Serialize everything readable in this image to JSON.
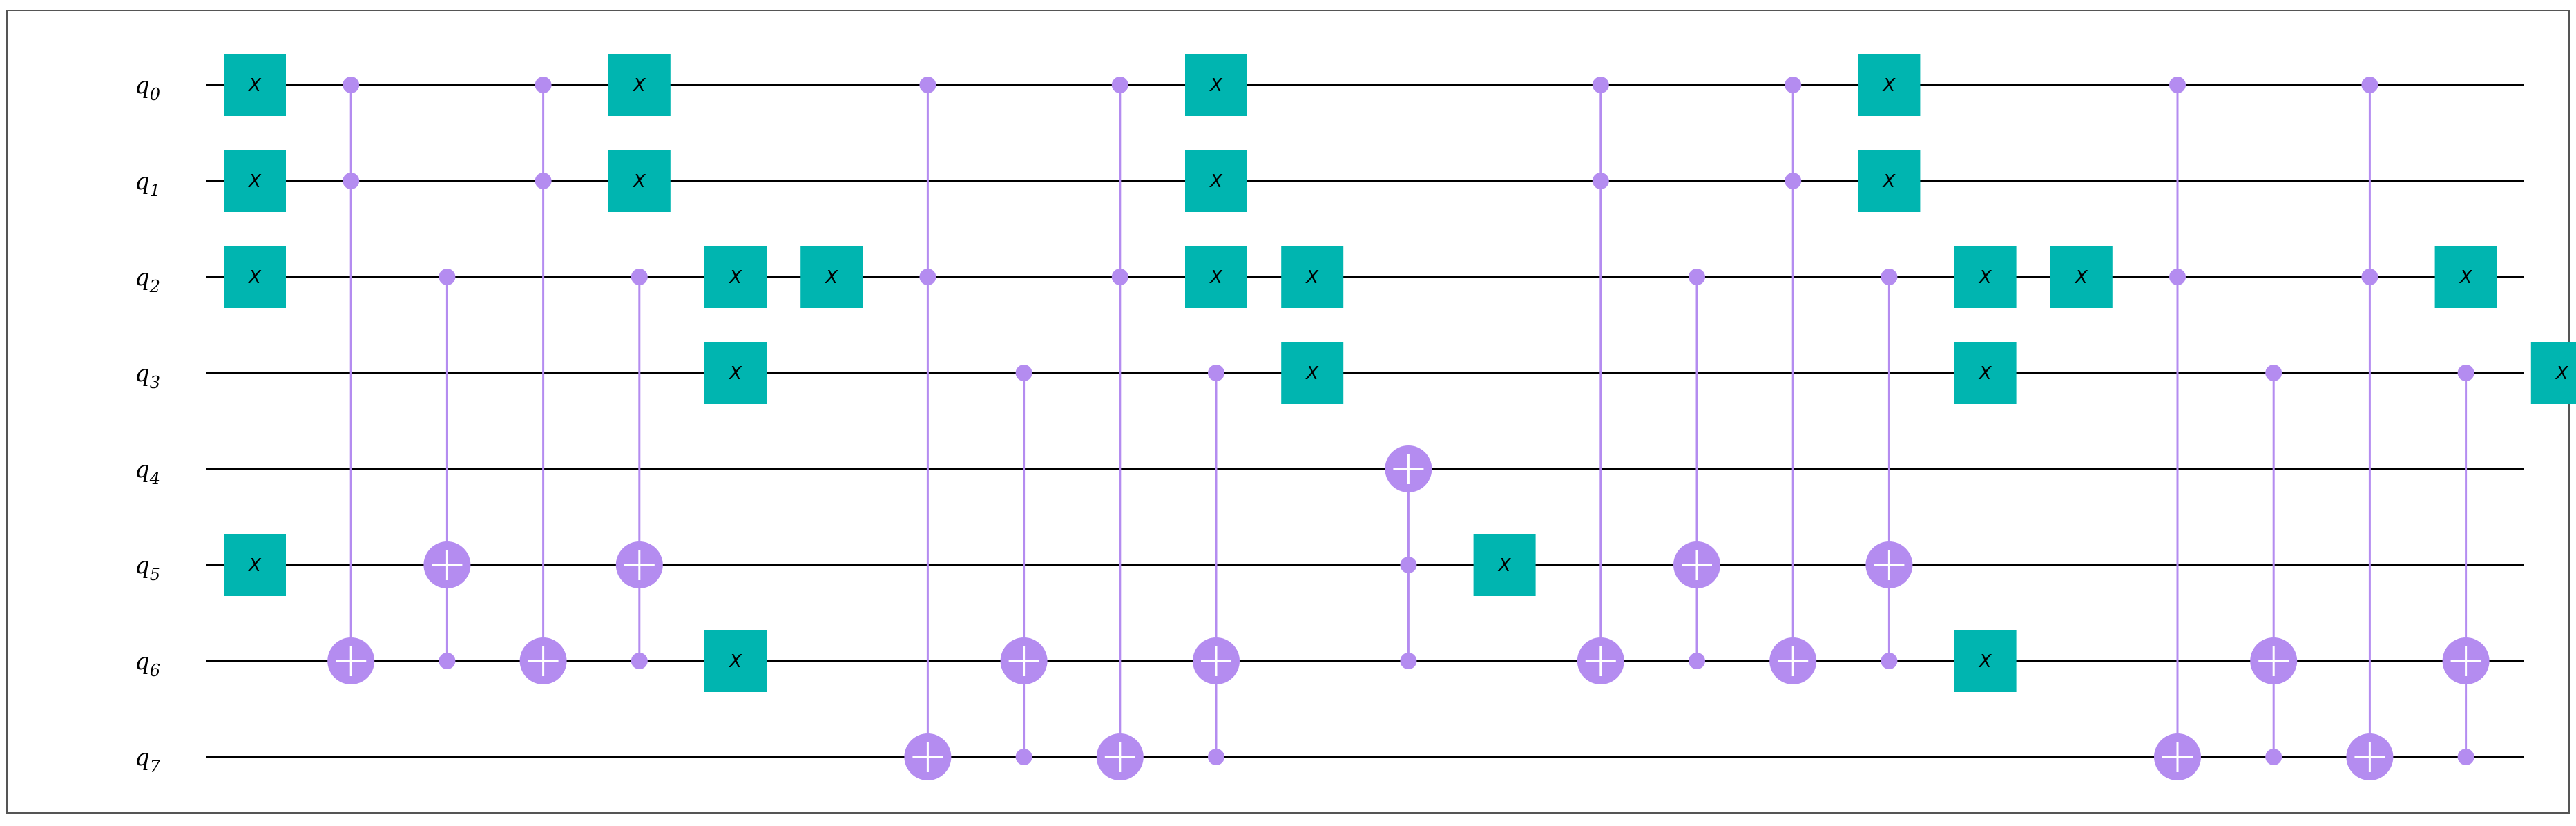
{
  "circuit": {
    "qubit_prefix": "q",
    "qubits": [
      "0",
      "1",
      "2",
      "3",
      "4",
      "5",
      "6",
      "7"
    ],
    "x_gate_label": "X",
    "colors": {
      "x_gate": "#00b5b0",
      "control": "#b48cf0",
      "wire": "#000000",
      "frame": "#555555"
    },
    "columns": [
      {
        "x": [
          0,
          1,
          2,
          5
        ]
      },
      {
        "cx": {
          "controls": [
            0,
            1
          ],
          "target": 6
        }
      },
      {
        "cx": {
          "controls": [
            2,
            6
          ],
          "target": 5
        }
      },
      {
        "cx": {
          "controls": [
            0,
            1
          ],
          "target": 6
        }
      },
      {
        "cx": {
          "controls": [
            2,
            6
          ],
          "target": 5
        },
        "x": [
          0,
          1
        ]
      },
      {
        "x": [
          2,
          3,
          6
        ]
      },
      {
        "x": [
          2
        ]
      },
      {
        "cx": {
          "controls": [
            0,
            2
          ],
          "target": 7
        }
      },
      {
        "cx": {
          "controls": [
            3,
            7
          ],
          "target": 6
        }
      },
      {
        "cx": {
          "controls": [
            0,
            2
          ],
          "target": 7
        }
      },
      {
        "cx": {
          "controls": [
            3,
            7
          ],
          "target": 6
        },
        "x": [
          0,
          1,
          2
        ]
      },
      {
        "x": [
          2,
          3
        ]
      },
      {
        "cx": {
          "controls": [
            5,
            6
          ],
          "target": 4
        }
      },
      {
        "x": [
          5
        ]
      },
      {
        "cx": {
          "controls": [
            0,
            1
          ],
          "target": 6
        }
      },
      {
        "cx": {
          "controls": [
            2,
            6
          ],
          "target": 5
        }
      },
      {
        "cx": {
          "controls": [
            0,
            1
          ],
          "target": 6
        }
      },
      {
        "cx": {
          "controls": [
            2,
            6
          ],
          "target": 5
        },
        "x": [
          0,
          1
        ]
      },
      {
        "x": [
          2,
          3,
          6
        ]
      },
      {
        "x": [
          2
        ]
      },
      {
        "cx": {
          "controls": [
            0,
            2
          ],
          "target": 7
        }
      },
      {
        "cx": {
          "controls": [
            3,
            7
          ],
          "target": 6
        }
      },
      {
        "cx": {
          "controls": [
            0,
            2
          ],
          "target": 7
        }
      },
      {
        "cx": {
          "controls": [
            3,
            7
          ],
          "target": 6
        },
        "x": [
          2
        ]
      },
      {
        "x": [
          3
        ]
      }
    ]
  }
}
